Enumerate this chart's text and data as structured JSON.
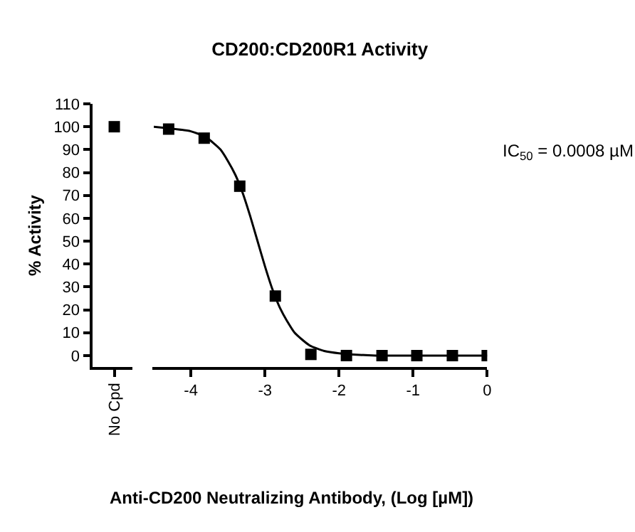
{
  "chart_data": [
    {
      "type": "scatter",
      "ylabel": "% Activity",
      "categories": [
        "No Cpd"
      ],
      "values": [
        100
      ],
      "color": "#000000",
      "marker": "square",
      "ylim": [
        -5,
        110
      ],
      "yticks": [
        0,
        10,
        20,
        30,
        40,
        50,
        60,
        70,
        80,
        90,
        100,
        110
      ]
    },
    {
      "type": "scatter",
      "title": "CD200:CD200R1 Activity",
      "xlabel": "Anti-CD200 Neutralizing Antibody, (Log [µM])",
      "annotations": [
        "IC$_{50}$ = 0.0008 µM"
      ],
      "xlim": [
        -4.52,
        0
      ],
      "xticks": [
        -4,
        -3,
        -2,
        -1,
        0
      ],
      "ylim": [
        -5,
        110
      ],
      "tick_labels": "x",
      "series": [
        {
          "type": "scatter",
          "marker": "square",
          "color": "#000000",
          "x": [
            -4.3,
            -3.82,
            -3.34,
            -2.86,
            -2.38,
            -1.9,
            -1.42,
            -0.95,
            -0.47,
            0
          ],
          "values": [
            99,
            95,
            74,
            26,
            0.5,
            0,
            0,
            0,
            0,
            0
          ]
        },
        {
          "type": "line",
          "color": "#000000",
          "x": [
            -4.5,
            -4.0,
            -3.8,
            -3.6,
            -3.5,
            -3.4,
            -3.3,
            -3.2,
            -3.1,
            -3.0,
            -2.9,
            -2.8,
            -2.7,
            -2.6,
            -2.4,
            -2.2,
            -2.0,
            -1.5,
            -1.0,
            0
          ],
          "values": [
            100,
            98,
            95.5,
            90,
            85,
            79,
            71,
            61,
            50,
            39,
            29,
            21,
            15,
            10,
            4.5,
            2,
            1,
            0,
            0,
            0
          ]
        }
      ]
    }
  ]
}
